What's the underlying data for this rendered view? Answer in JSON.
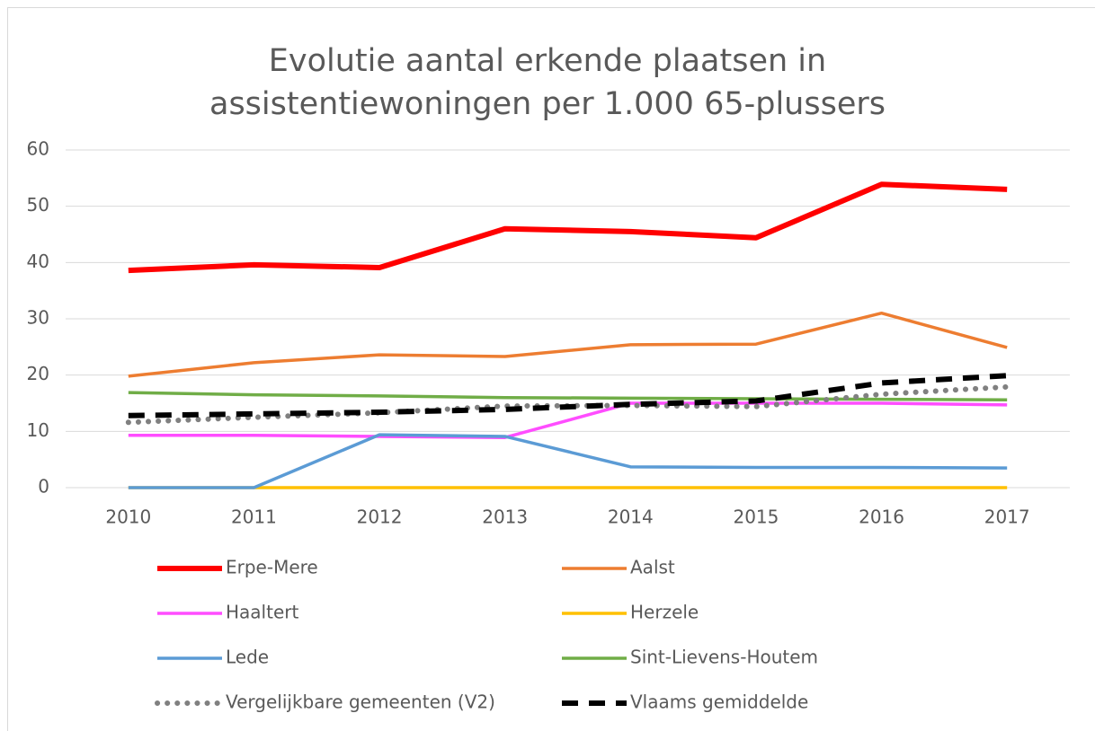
{
  "chart_data": {
    "type": "line",
    "title": "Evolutie aantal erkende plaatsen in assistentiewoningen per 1.000 65-plussers",
    "categories": [
      "2010",
      "2011",
      "2012",
      "2013",
      "2014",
      "2015",
      "2016",
      "2017"
    ],
    "ylim": [
      0,
      60
    ],
    "yticks": [
      0,
      10,
      20,
      30,
      40,
      50,
      60
    ],
    "grid": true,
    "series": [
      {
        "name": "Erpe-Mere",
        "color": "#ff0000",
        "style": "solid",
        "values": [
          38.6,
          39.6,
          39.1,
          46.0,
          45.5,
          44.4,
          53.9,
          53.0
        ]
      },
      {
        "name": "Aalst",
        "color": "#ed7d31",
        "style": "solid",
        "values": [
          19.8,
          22.2,
          23.6,
          23.3,
          25.4,
          25.5,
          31.0,
          24.9
        ]
      },
      {
        "name": "Haaltert",
        "color": "#ff4dff",
        "style": "solid",
        "values": [
          9.3,
          9.3,
          9.1,
          8.9,
          15.0,
          15.0,
          15.0,
          14.7
        ]
      },
      {
        "name": "Herzele",
        "color": "#ffc000",
        "style": "solid",
        "values": [
          0,
          0,
          0,
          0,
          0,
          0,
          0,
          0
        ]
      },
      {
        "name": "Lede",
        "color": "#5b9bd5",
        "style": "solid",
        "values": [
          0,
          0,
          9.4,
          9.1,
          3.7,
          3.6,
          3.6,
          3.5
        ]
      },
      {
        "name": "Sint-Lievens-Houtem",
        "color": "#70ad47",
        "style": "solid",
        "values": [
          16.9,
          16.5,
          16.3,
          16.0,
          15.9,
          15.8,
          15.7,
          15.6
        ]
      },
      {
        "name": "Vergelijkbare gemeenten (V2)",
        "color": "#808080",
        "style": "dotted",
        "values": [
          11.6,
          12.5,
          13.3,
          14.5,
          14.6,
          14.4,
          16.6,
          17.9
        ]
      },
      {
        "name": "Vlaams gemiddelde",
        "color": "#000000",
        "style": "dashed",
        "values": [
          12.8,
          13.1,
          13.4,
          13.9,
          14.8,
          15.4,
          18.6,
          19.9
        ]
      }
    ]
  }
}
